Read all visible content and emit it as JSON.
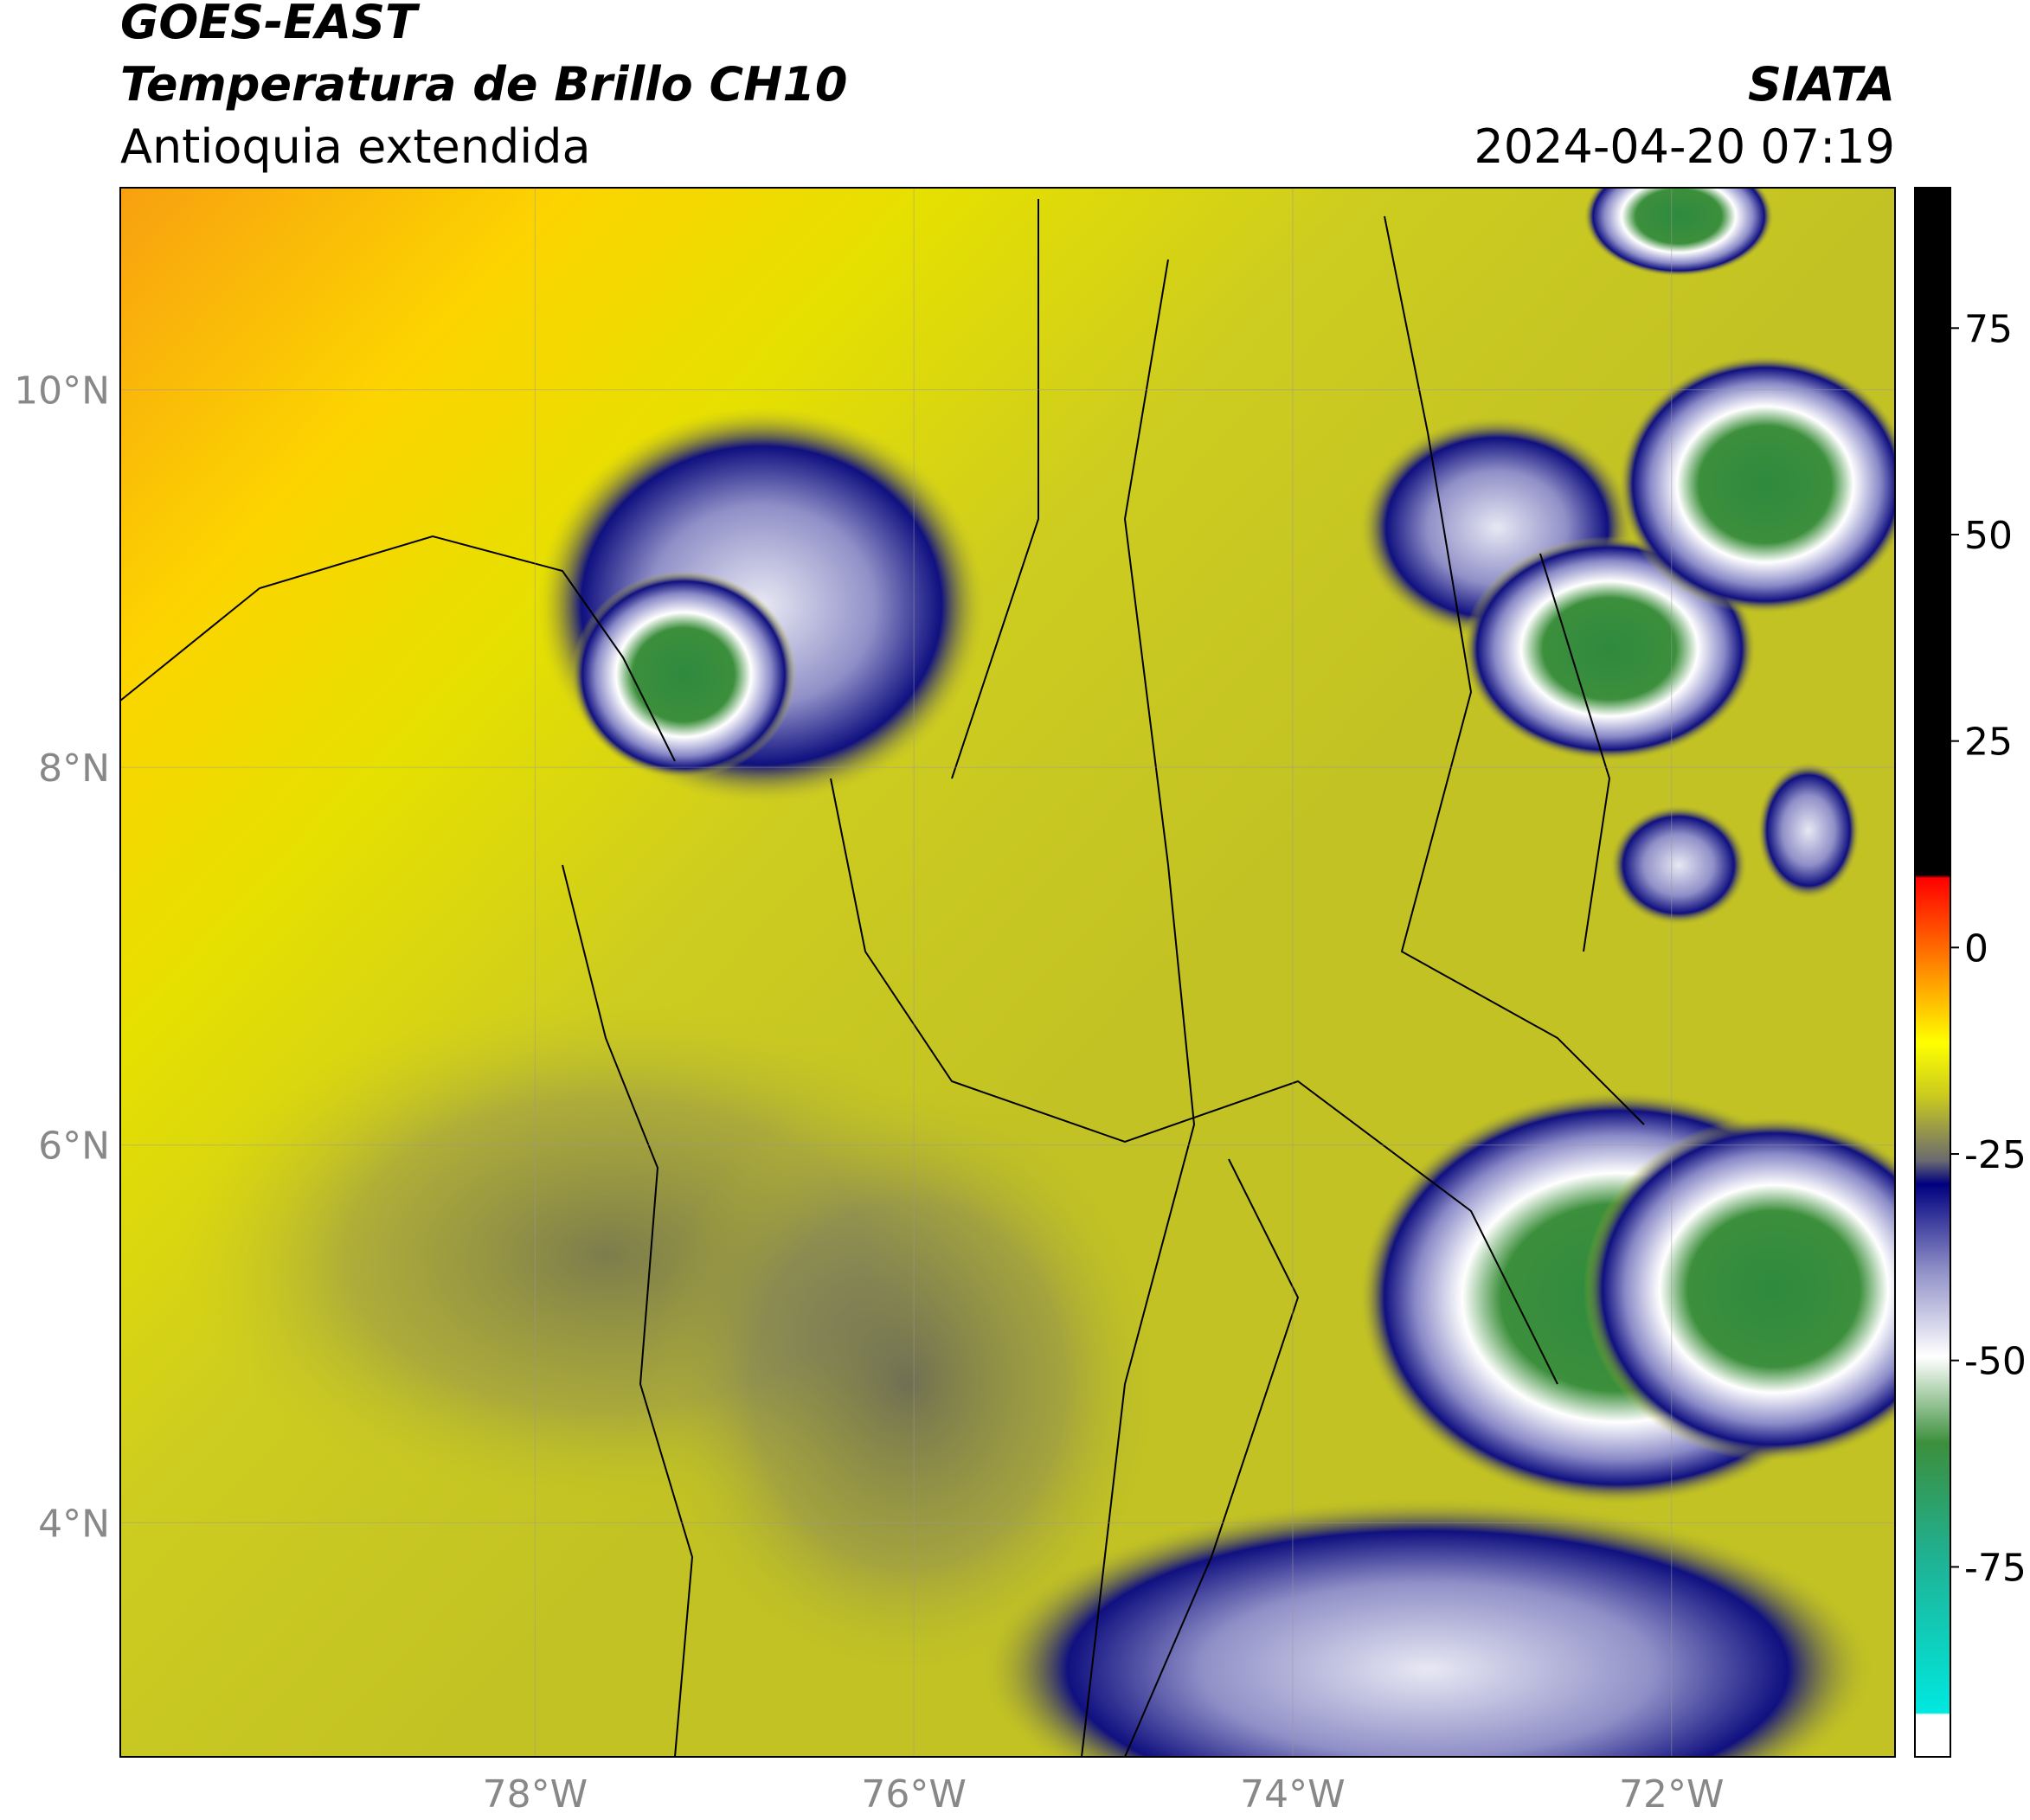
{
  "header": {
    "title": "GOES-EAST",
    "subtitle": "Temperatura de Brillo CH10",
    "region": "Antioquia extendida",
    "source": "SIATA",
    "datetime": "2024-04-20 07:19"
  },
  "map": {
    "xlim": [
      -80.19,
      -70.82
    ],
    "ylim": [
      2.76,
      11.07
    ],
    "grid": true,
    "xticks": [
      {
        "value": -78,
        "label": "78°W"
      },
      {
        "value": -76,
        "label": "76°W"
      },
      {
        "value": -74,
        "label": "74°W"
      },
      {
        "value": -72,
        "label": "72°W"
      }
    ],
    "yticks": [
      {
        "value": 4,
        "label": "4°N"
      },
      {
        "value": 6,
        "label": "6°N"
      },
      {
        "value": 8,
        "label": "8°N"
      },
      {
        "value": 10,
        "label": "10°N"
      }
    ]
  },
  "colorbar": {
    "lim": [
      -98,
      92
    ],
    "ticks": [
      -75,
      -50,
      -25,
      0,
      25,
      50,
      75
    ]
  }
}
